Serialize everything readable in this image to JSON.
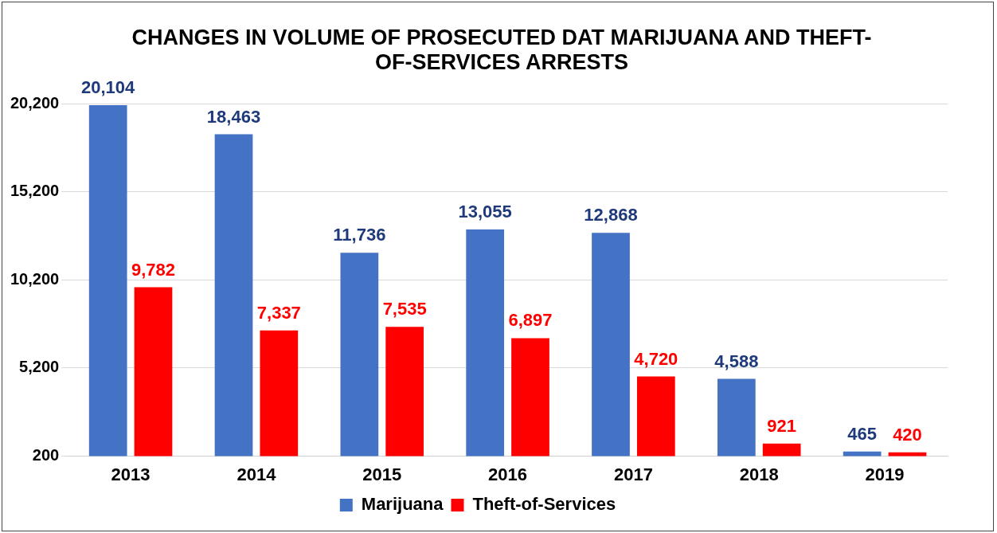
{
  "chart_data": {
    "type": "bar",
    "title": "CHANGES IN VOLUME OF PROSECUTED DAT MARIJUANA AND THEFT-OF-SERVICES ARRESTS",
    "categories": [
      "2013",
      "2014",
      "2015",
      "2016",
      "2017",
      "2018",
      "2019"
    ],
    "series": [
      {
        "name": "Marijuana",
        "color": "#4472c4",
        "values": [
          20104,
          18463,
          11736,
          13055,
          12868,
          4588,
          465
        ],
        "value_labels": [
          "20,104",
          "18,463",
          "11,736",
          "13,055",
          "12,868",
          "4,588",
          "465"
        ]
      },
      {
        "name": "Theft-of-Services",
        "color": "#ff0000",
        "values": [
          9782,
          7337,
          7535,
          6897,
          4720,
          921,
          420
        ],
        "value_labels": [
          "9,782",
          "7,337",
          "7,535",
          "6,897",
          "4,720",
          "921",
          "420"
        ]
      }
    ],
    "ylim": [
      200,
      20200
    ],
    "yticks": [
      200,
      {
        "value": 5200,
        "label": "5,200"
      },
      {
        "value": 10200,
        "label": "10,200"
      },
      {
        "value": 15200,
        "label": "15,200"
      },
      {
        "value": 20200,
        "label": "20,200"
      }
    ],
    "grid": "y",
    "legend": "bottom"
  }
}
